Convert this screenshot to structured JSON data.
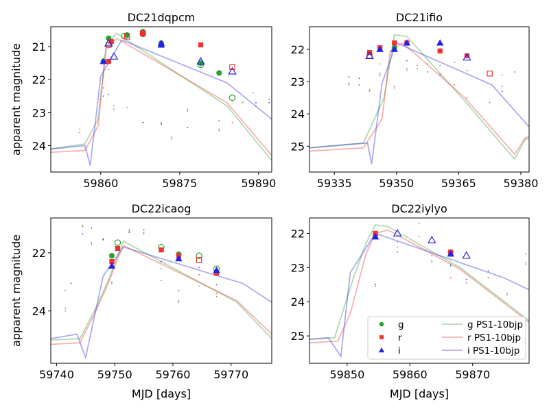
{
  "figure": {
    "ylabel": "apparent magnitude",
    "xlabel": "MJD [days]"
  },
  "colors": {
    "g": "#2ca02c",
    "r": "#f03030",
    "i": "#2323e6",
    "g_model": "#2ca02c",
    "r_model": "#f03030",
    "i_model": "#2323e6"
  },
  "legend": [
    {
      "label": "g",
      "kind": "marker",
      "band": "g",
      "marker": "circle"
    },
    {
      "label": "r",
      "kind": "marker",
      "band": "r",
      "marker": "square"
    },
    {
      "label": "i",
      "kind": "marker",
      "band": "i",
      "marker": "triangle"
    },
    {
      "label": "g PS1-10bjp",
      "kind": "line",
      "band": "g"
    },
    {
      "label": "r PS1-10bjp",
      "kind": "line",
      "band": "r"
    },
    {
      "label": "i PS1-10bjp",
      "kind": "line",
      "band": "i"
    }
  ],
  "chart_data": [
    {
      "type": "scatter",
      "title": "DC21dqpcm",
      "xlabel": "",
      "ylabel": "apparent magnitude",
      "xlim": [
        59850.5,
        59892.5
      ],
      "ylim": [
        24.8,
        20.4
      ],
      "xticks": [
        59860,
        59875,
        59890
      ],
      "yticks": [
        21,
        22,
        23,
        24
      ],
      "models": [
        {
          "band": "g",
          "x": [
            59850.5,
            59857,
            59859.5,
            59861,
            59863,
            59884,
            59892.5
          ],
          "y": [
            24.1,
            23.95,
            23.2,
            21.0,
            20.6,
            22.8,
            24.45
          ]
        },
        {
          "band": "r",
          "x": [
            59850.5,
            59857,
            59859.5,
            59861,
            59863,
            59884,
            59892.5
          ],
          "y": [
            24.2,
            24.15,
            23.4,
            21.1,
            20.75,
            22.7,
            24.3
          ]
        },
        {
          "band": "i",
          "x": [
            59850.5,
            59857,
            59858,
            59860,
            59864,
            59884,
            59892.5
          ],
          "y": [
            24.1,
            24.0,
            24.6,
            21.9,
            20.8,
            22.1,
            23.2
          ]
        }
      ],
      "points": [
        {
          "band": "g",
          "filled": true,
          "x": [
            59860.5,
            59861.5,
            59865,
            59868,
            59871.5,
            59879,
            59882.5
          ],
          "y": [
            21.45,
            20.75,
            20.65,
            20.55,
            20.9,
            21.5,
            21.8
          ]
        },
        {
          "band": "g",
          "filled": false,
          "x": [
            59864.5,
            59868,
            59879,
            59885
          ],
          "y": [
            20.68,
            20.62,
            21.55,
            22.55
          ]
        },
        {
          "band": "r",
          "filled": true,
          "x": [
            59861.5,
            59862,
            59868,
            59879
          ],
          "y": [
            21.45,
            20.85,
            20.6,
            20.95
          ]
        },
        {
          "band": "r",
          "filled": false,
          "x": [
            59861.5,
            59865,
            59868,
            59885
          ],
          "y": [
            20.95,
            20.7,
            20.6,
            21.62
          ]
        },
        {
          "band": "i",
          "filled": true,
          "x": [
            59860.5,
            59871.5,
            59871.5
          ],
          "y": [
            21.45,
            20.9,
            20.95
          ]
        },
        {
          "band": "i",
          "filled": false,
          "x": [
            59861.5,
            59862.5,
            59879,
            59885
          ],
          "y": [
            20.9,
            21.3,
            21.45,
            21.75
          ]
        }
      ],
      "faint": [
        {
          "band": "g",
          "x": [
            59856,
            59856,
            59860.5,
            59861.5,
            59862.5,
            59865,
            59868,
            59871.5,
            59873.5,
            59876.5,
            59882.5,
            59887,
            59889
          ],
          "y": [
            23.5,
            23.6,
            21.9,
            21.7,
            22.9,
            22.85,
            23.3,
            23.3,
            23.75,
            22.95,
            23.5,
            22.7,
            22.4
          ]
        },
        {
          "band": "r",
          "x": [
            59860.5,
            59862.5,
            59868,
            59871.5,
            59873.5,
            59876.5,
            59882.5,
            59885,
            59889.5,
            59892
          ],
          "y": [
            22.25,
            22.8,
            23.3,
            23.35,
            23.8,
            22.9,
            23.55,
            23.3,
            22.8,
            22.6
          ]
        },
        {
          "band": "i",
          "x": [
            59860.5,
            59861.5,
            59868,
            59871.5,
            59876.5,
            59882.5,
            59889.5,
            59892
          ],
          "y": [
            22.5,
            22.45,
            23.3,
            23.35,
            23.45,
            23.25,
            22.7,
            22.7
          ]
        }
      ]
    },
    {
      "type": "scatter",
      "title": "DC21ifio",
      "xlabel": "",
      "ylabel": "",
      "xlim": [
        59329,
        59382
      ],
      "ylim": [
        25.8,
        21.3
      ],
      "xticks": [
        59335,
        59350,
        59365,
        59380
      ],
      "yticks": [
        22,
        23,
        24,
        25
      ],
      "models": [
        {
          "band": "g",
          "x": [
            59329,
            59342,
            59347,
            59349.5,
            59352.5,
            59366.5,
            59378.5,
            59381,
            59382
          ],
          "y": [
            25.05,
            24.9,
            23.5,
            21.55,
            21.6,
            23.6,
            25.4,
            24.8,
            24.75
          ]
        },
        {
          "band": "r",
          "x": [
            59329,
            59342,
            59346.5,
            59348.5,
            59351.5,
            59366.5,
            59378.5,
            59381,
            59382
          ],
          "y": [
            25.15,
            25.05,
            24.15,
            22.05,
            21.8,
            23.5,
            25.25,
            24.75,
            24.7
          ]
        },
        {
          "band": "i",
          "x": [
            59329,
            59343,
            59344,
            59346.5,
            59350,
            59373,
            59382
          ],
          "y": [
            25.05,
            24.9,
            25.55,
            23.05,
            21.8,
            23.1,
            24.4
          ]
        }
      ],
      "points": [
        {
          "band": "g",
          "filled": true,
          "x": [
            59349.5
          ],
          "y": [
            21.95
          ]
        },
        {
          "band": "r",
          "filled": true,
          "x": [
            59343.5,
            59346,
            59349.5,
            59352.5,
            59360.5,
            59367
          ],
          "y": [
            22.1,
            21.95,
            21.8,
            21.8,
            22.05,
            22.2
          ]
        },
        {
          "band": "r",
          "filled": false,
          "x": [
            59343.5,
            59372.5
          ],
          "y": [
            22.2,
            22.75
          ]
        },
        {
          "band": "i",
          "filled": true,
          "x": [
            59346,
            59349.5,
            59352.5,
            59360.5
          ],
          "y": [
            22.0,
            22.0,
            21.8,
            21.8
          ]
        },
        {
          "band": "i",
          "filled": false,
          "x": [
            59343.5,
            59367
          ],
          "y": [
            22.2,
            22.25
          ]
        }
      ],
      "faint": [
        {
          "band": "g",
          "x": [
            59338.5,
            59341,
            59343.5,
            59346,
            59349.5,
            59352.5,
            59355,
            59357.5,
            59360.5,
            59364,
            59367,
            59372.5,
            59375.5,
            59378.5
          ],
          "y": [
            23.1,
            23.1,
            23.3,
            22.45,
            23.2,
            22.65,
            22.6,
            22.45,
            22.5,
            22.4,
            23.5,
            23.65,
            22.8,
            22.7
          ]
        },
        {
          "band": "r",
          "x": [
            59338.5,
            59341,
            59343.5,
            59346,
            59349.5,
            59352.5,
            59355,
            59360.5,
            59364,
            59367,
            59375.5
          ],
          "y": [
            23.05,
            23.1,
            23.25,
            22.75,
            23.15,
            22.6,
            22.5,
            22.75,
            23.1,
            22.25,
            23.15
          ]
        },
        {
          "band": "i",
          "x": [
            59338.5,
            59341,
            59346,
            59352.5,
            59357.5,
            59360.5,
            59367,
            59375.5
          ],
          "y": [
            22.85,
            22.9,
            22.8,
            22.35,
            22.7,
            22.8,
            22.65,
            23.3
          ]
        }
      ]
    },
    {
      "type": "scatter",
      "title": "DC22icaog",
      "xlabel": "MJD [days]",
      "ylabel": "apparent magnitude",
      "xlim": [
        59739,
        59777
      ],
      "ylim": [
        25.8,
        20.8
      ],
      "xticks": [
        59740,
        59750,
        59760,
        59770
      ],
      "yticks": [
        22,
        24
      ],
      "models": [
        {
          "band": "g",
          "x": [
            59739,
            59744,
            59747,
            59749,
            59750.5,
            59751.5,
            59771,
            59777
          ],
          "y": [
            25.0,
            24.95,
            23.8,
            22.9,
            22.1,
            21.6,
            23.7,
            24.95
          ]
        },
        {
          "band": "r",
          "x": [
            59739,
            59744,
            59747,
            59749,
            59750.5,
            59751.5,
            59771,
            59777
          ],
          "y": [
            25.15,
            25.1,
            23.9,
            23.0,
            22.2,
            21.75,
            23.65,
            24.8
          ]
        },
        {
          "band": "i",
          "x": [
            59739,
            59743.5,
            59745,
            59748,
            59751.5,
            59772,
            59777
          ],
          "y": [
            24.95,
            24.8,
            25.6,
            22.8,
            21.8,
            23.05,
            23.7
          ]
        }
      ],
      "points": [
        {
          "band": "g",
          "filled": true,
          "x": [
            59749.5,
            59761
          ],
          "y": [
            22.1,
            22.05
          ]
        },
        {
          "band": "g",
          "filled": false,
          "x": [
            59750.5,
            59758,
            59764.5,
            59767.5
          ],
          "y": [
            21.65,
            21.8,
            22.1,
            22.55
          ]
        },
        {
          "band": "r",
          "filled": true,
          "x": [
            59749.5,
            59750.5,
            59758,
            59761,
            59767.5
          ],
          "y": [
            22.3,
            21.85,
            21.9,
            22.1,
            22.7
          ]
        },
        {
          "band": "r",
          "filled": false,
          "x": [
            59764.5
          ],
          "y": [
            22.25
          ]
        },
        {
          "band": "i",
          "filled": true,
          "x": [
            59749.5,
            59761,
            59767.5
          ],
          "y": [
            22.45,
            22.2,
            22.6
          ]
        }
      ],
      "faint": [
        {
          "band": "g",
          "x": [
            59739,
            59741.5,
            59741.5,
            59744.5,
            59746,
            59748,
            59749.5,
            59752.5,
            59755,
            59758,
            59761,
            59764.5,
            59767.5
          ],
          "y": [
            23.7,
            23.9,
            24.0,
            21.05,
            21.7,
            21.5,
            23.0,
            21.2,
            21.35,
            22.55,
            23.65,
            23.15,
            23.5
          ]
        },
        {
          "band": "r",
          "x": [
            59741.5,
            59744.5,
            59746,
            59748,
            59749.5,
            59752.5,
            59755,
            59758,
            59761,
            59764.5,
            59767.5
          ],
          "y": [
            23.3,
            21.1,
            21.65,
            21.55,
            23.05,
            21.25,
            21.3,
            22.95,
            23.7,
            22.75,
            23.4
          ]
        },
        {
          "band": "i",
          "x": [
            59739,
            59742.5,
            59744.5,
            59746,
            59748,
            59752.5,
            59755,
            59758,
            59761,
            59764.5,
            59767.5
          ],
          "y": [
            23.35,
            23.05,
            21.35,
            21.15,
            21.55,
            21.3,
            21.2,
            22.3,
            23.3,
            22.5,
            23.1
          ]
        }
      ]
    },
    {
      "type": "scatter",
      "title": "DC22iylyo",
      "xlabel": "MJD [days]",
      "ylabel": "",
      "xlim": [
        59844,
        59879
      ],
      "ylim": [
        25.8,
        21.55
      ],
      "xticks": [
        59850,
        59860,
        59870
      ],
      "yticks": [
        22,
        23,
        24,
        25
      ],
      "models": [
        {
          "band": "g",
          "x": [
            59844,
            59848,
            59851,
            59853,
            59854.5,
            59856.5,
            59868,
            59879
          ],
          "y": [
            25.1,
            25.05,
            23.3,
            22.3,
            21.75,
            21.8,
            23.0,
            24.55
          ]
        },
        {
          "band": "r",
          "x": [
            59844,
            59848.5,
            59850.5,
            59853,
            59854.5,
            59856.5,
            59868,
            59879
          ],
          "y": [
            25.2,
            25.15,
            24.35,
            22.6,
            22.0,
            21.9,
            23.05,
            24.6
          ]
        },
        {
          "band": "i",
          "x": [
            59844,
            59847,
            59849,
            59850.5,
            59854.5,
            59875,
            59879
          ],
          "y": [
            25.1,
            25.05,
            25.6,
            23.15,
            22.0,
            23.3,
            23.65
          ]
        }
      ],
      "points": [
        {
          "band": "g",
          "filled": true,
          "x": [
            59854.5,
            59866.5
          ],
          "y": [
            22.05,
            22.55
          ]
        },
        {
          "band": "r",
          "filled": true,
          "x": [
            59854.5,
            59866.5
          ],
          "y": [
            22.0,
            22.55
          ]
        },
        {
          "band": "i",
          "filled": true,
          "x": [
            59854.5,
            59866.5
          ],
          "y": [
            22.1,
            22.6
          ]
        },
        {
          "band": "i",
          "filled": false,
          "x": [
            59858,
            59863.5,
            59869
          ],
          "y": [
            22.0,
            22.2,
            22.65
          ]
        }
      ],
      "faint": [
        {
          "band": "g",
          "x": [
            59854.5,
            59858,
            59861.5,
            59863.5,
            59866.5,
            59869,
            59872.5,
            59875.5,
            59878.5
          ],
          "y": [
            23.5,
            22.4,
            21.7,
            22.85,
            22.9,
            23.45,
            23.3,
            23.8,
            22.9
          ]
        },
        {
          "band": "r",
          "x": [
            59854.5,
            59858,
            59861.5,
            59863.5,
            59866.5,
            59869,
            59872.5,
            59875.5,
            59878.5
          ],
          "y": [
            23.55,
            22.25,
            22.1,
            22.65,
            23.3,
            23.45,
            23.3,
            23.75,
            22.85
          ]
        },
        {
          "band": "i",
          "x": [
            59854.5,
            59858,
            59863.5,
            59866.5,
            59869,
            59872.5,
            59878.5
          ],
          "y": [
            23.5,
            22.55,
            22.8,
            22.95,
            23.35,
            23.1,
            22.6
          ]
        }
      ]
    }
  ]
}
